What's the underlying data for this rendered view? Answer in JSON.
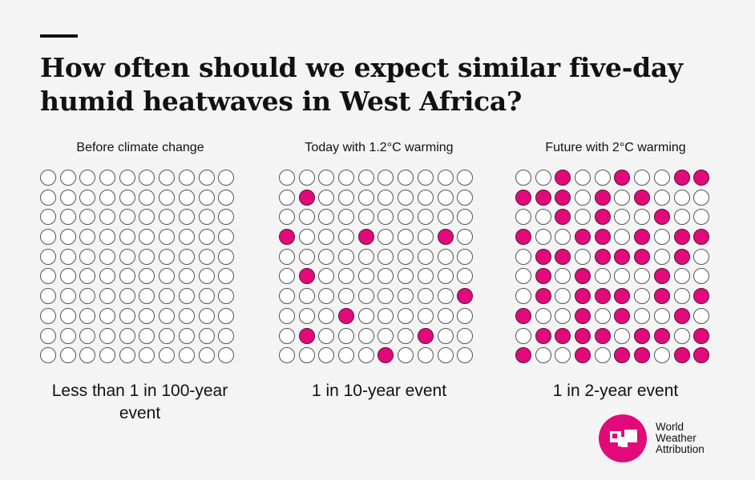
{
  "header": {
    "title": "How often should we expect similar five-day humid heatwaves in West Africa?"
  },
  "brand": {
    "name_lines": [
      "World",
      "Weather",
      "Attribution"
    ],
    "accent_color": "#e20a7a"
  },
  "panels": [
    {
      "label": "Before climate change",
      "footer": "Less than 1 in 100-year event"
    },
    {
      "label": "Today with 1.2°C warming",
      "footer": "1 in 10-year event"
    },
    {
      "label": "Future with 2°C warming",
      "footer": "1 in 2-year event"
    }
  ],
  "chart_data": {
    "type": "waffle",
    "title": "How often should we expect similar five-day humid heatwaves in West Africa?",
    "grid": {
      "rows": 10,
      "cols": 10,
      "total": 100
    },
    "filled_color": "#e20a7a",
    "empty_color": "#ffffff",
    "series": [
      {
        "name": "Before climate change",
        "caption": "Less than 1 in 100-year event",
        "filled_count": 0,
        "grid": [
          "0000000000",
          "0000000000",
          "0000000000",
          "0000000000",
          "0000000000",
          "0000000000",
          "0000000000",
          "0000000000",
          "0000000000",
          "0000000000"
        ]
      },
      {
        "name": "Today with 1.2°C warming",
        "caption": "1 in 10-year event",
        "filled_count": 10,
        "grid": [
          "0000000000",
          "0100000000",
          "0000000000",
          "1000100010",
          "0000000000",
          "0100000000",
          "0000000001",
          "0001000000",
          "0100000100",
          "0000010000"
        ]
      },
      {
        "name": "Future with 2°C warming",
        "caption": "1 in 2-year event",
        "filled_count": 50,
        "grid": [
          "0010010011",
          "1110101000",
          "0010100100",
          "1001101011",
          "0110111010",
          "0101000100",
          "0101110101",
          "1001010010",
          "0111101101",
          "1001011011"
        ]
      }
    ]
  }
}
